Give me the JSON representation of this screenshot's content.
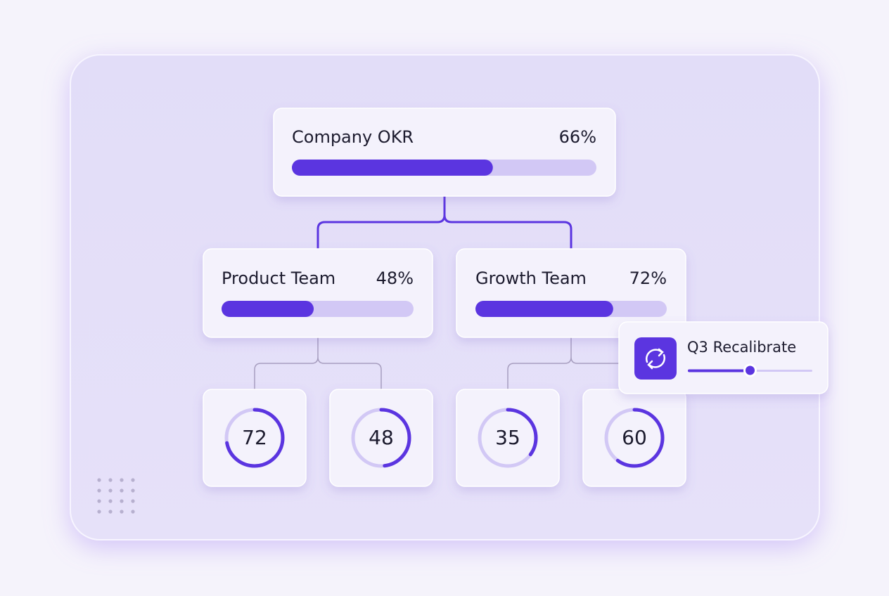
{
  "company": {
    "title": "Company OKR",
    "value": 66,
    "value_label": "66%"
  },
  "teams": [
    {
      "title": "Product Team",
      "value": 48,
      "value_label": "48%",
      "key_results": [
        72,
        48
      ]
    },
    {
      "title": "Growth Team",
      "value": 72,
      "value_label": "72%",
      "key_results": [
        35,
        60
      ]
    }
  ],
  "recalibrate": {
    "title": "Q3 Recalibrate",
    "value": 50
  }
}
